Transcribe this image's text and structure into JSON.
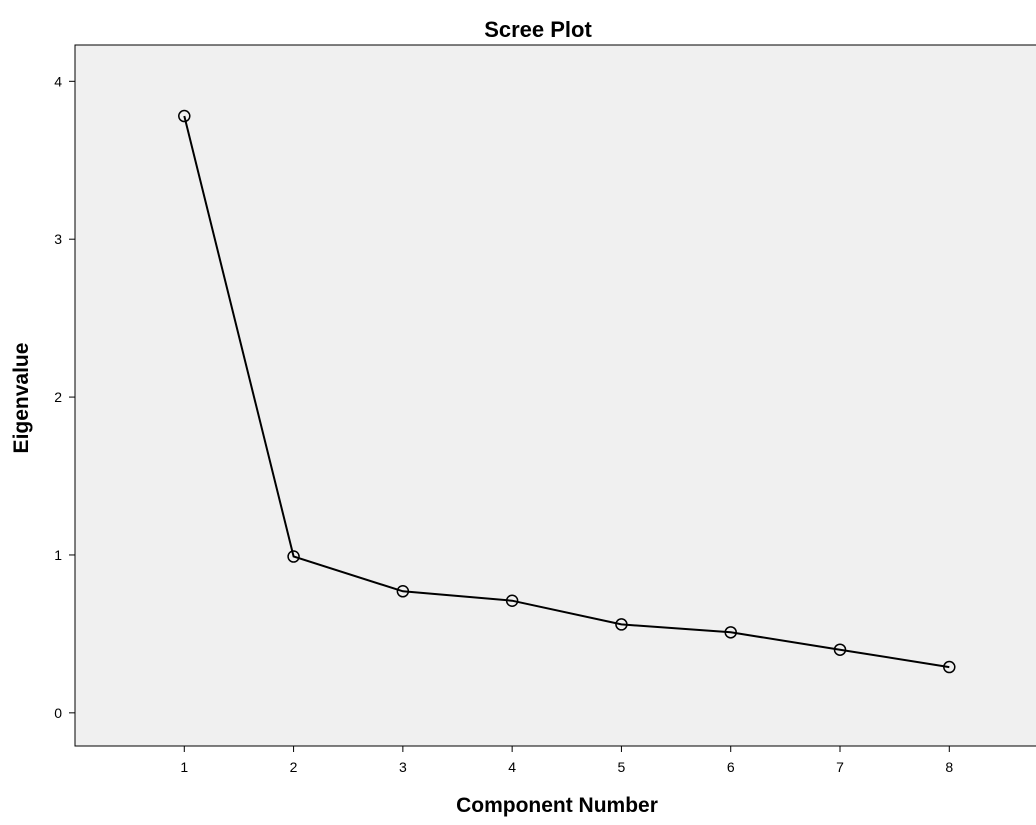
{
  "chart_data": {
    "type": "line",
    "title": "Scree Plot",
    "xlabel": "Component Number",
    "ylabel": "Eigenvalue",
    "x": [
      1,
      2,
      3,
      4,
      5,
      6,
      7,
      8
    ],
    "xticks": [
      "1",
      "2",
      "3",
      "4",
      "5",
      "6",
      "7",
      "8"
    ],
    "xlim": [
      0,
      8.83
    ],
    "y": [
      3.78,
      0.99,
      0.77,
      0.71,
      0.56,
      0.51,
      0.4,
      0.29
    ],
    "yticks": [
      "0",
      "1",
      "2",
      "3",
      "4"
    ],
    "ylim": [
      -0.21,
      4.23
    ],
    "grid": false,
    "legend": "none",
    "colors": {
      "plot_background": "#f0f0f0",
      "line": "#000000",
      "marker_stroke": "#000000"
    }
  }
}
